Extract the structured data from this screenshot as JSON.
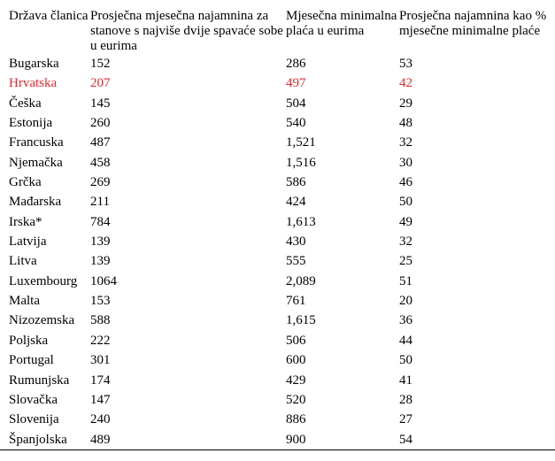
{
  "table": {
    "headers": [
      "Država članica",
      "Prosječna mjesečna najamnina za stanove s najviše dvije spavaće sobe u eurima",
      "Mjesečna minimalna plaća u eurima",
      "Prosječna najamnina kao % mjesečne minimalne plaće"
    ],
    "highlight_color": "#e8292c",
    "rows": [
      {
        "country": "Bugarska",
        "rent": "152",
        "wage": "286",
        "percent": "53"
      },
      {
        "country": "Hrvatska",
        "rent": "207",
        "wage": "497",
        "percent": "42",
        "highlight": true
      },
      {
        "country": "Češka",
        "rent": "145",
        "wage": "504",
        "percent": "29"
      },
      {
        "country": "Estonija",
        "rent": "260",
        "wage": "540",
        "percent": "48"
      },
      {
        "country": "Francuska",
        "rent": "487",
        "wage": "1,521",
        "percent": "32"
      },
      {
        "country": "Njemačka",
        "rent": "458",
        "wage": "1,516",
        "percent": "30"
      },
      {
        "country": "Grčka",
        "rent": "269",
        "wage": "586",
        "percent": "46"
      },
      {
        "country": "Mađarska",
        "rent": "211",
        "wage": "424",
        "percent": "50"
      },
      {
        "country": "Irska*",
        "rent": "784",
        "wage": "1,613",
        "percent": "49"
      },
      {
        "country": "Latvija",
        "rent": "139",
        "wage": "430",
        "percent": "32"
      },
      {
        "country": "Litva",
        "rent": "139",
        "wage": "555",
        "percent": "25"
      },
      {
        "country": "Luxembourg",
        "rent": "1064",
        "wage": "2,089",
        "percent": "51"
      },
      {
        "country": "Malta",
        "rent": "153",
        "wage": "761",
        "percent": "20"
      },
      {
        "country": "Nizozemska",
        "rent": "588",
        "wage": "1,615",
        "percent": "36"
      },
      {
        "country": "Poljska",
        "rent": "222",
        "wage": "506",
        "percent": "44"
      },
      {
        "country": "Portugal",
        "rent": "301",
        "wage": "600",
        "percent": "50"
      },
      {
        "country": "Rumunjska",
        "rent": "174",
        "wage": "429",
        "percent": "41"
      },
      {
        "country": "Slovačka",
        "rent": "147",
        "wage": "520",
        "percent": "28"
      },
      {
        "country": "Slovenija",
        "rent": "240",
        "wage": "886",
        "percent": "27"
      },
      {
        "country": "Španjolska",
        "rent": "489",
        "wage": "900",
        "percent": "54"
      }
    ]
  }
}
